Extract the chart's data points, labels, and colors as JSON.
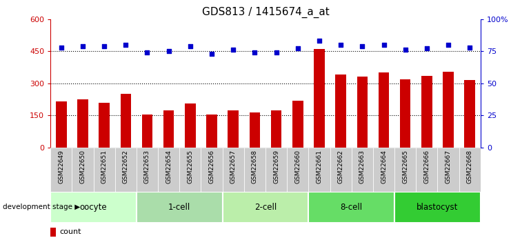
{
  "title": "GDS813 / 1415674_a_at",
  "samples": [
    "GSM22649",
    "GSM22650",
    "GSM22651",
    "GSM22652",
    "GSM22653",
    "GSM22654",
    "GSM22655",
    "GSM22656",
    "GSM22657",
    "GSM22658",
    "GSM22659",
    "GSM22660",
    "GSM22661",
    "GSM22662",
    "GSM22663",
    "GSM22664",
    "GSM22665",
    "GSM22666",
    "GSM22667",
    "GSM22668"
  ],
  "bar_values": [
    215,
    225,
    210,
    250,
    155,
    175,
    205,
    155,
    175,
    165,
    175,
    220,
    460,
    340,
    330,
    350,
    320,
    335,
    355,
    315
  ],
  "dot_values_pct": [
    78,
    79,
    79,
    80,
    74,
    75,
    79,
    73,
    76,
    74,
    74,
    77,
    83,
    80,
    79,
    80,
    76,
    77,
    80,
    78
  ],
  "stages": [
    {
      "label": "oocyte",
      "start": 0,
      "end": 4
    },
    {
      "label": "1-cell",
      "start": 4,
      "end": 8
    },
    {
      "label": "2-cell",
      "start": 8,
      "end": 12
    },
    {
      "label": "8-cell",
      "start": 12,
      "end": 16
    },
    {
      "label": "blastocyst",
      "start": 16,
      "end": 20
    }
  ],
  "stage_colors": [
    "#ccffcc",
    "#aaddaa",
    "#bbeeaa",
    "#66dd66",
    "#33cc33"
  ],
  "bar_color": "#cc0000",
  "dot_color": "#0000cc",
  "ylim_left": [
    0,
    600
  ],
  "ylim_right": [
    0,
    100
  ],
  "yticks_left": [
    0,
    150,
    300,
    450,
    600
  ],
  "yticks_right": [
    0,
    25,
    50,
    75,
    100
  ],
  "ytick_labels_right": [
    "0",
    "25",
    "50",
    "75",
    "100%"
  ],
  "grid_values": [
    150,
    300,
    450
  ],
  "title_fontsize": 11,
  "axis_color_left": "#cc0000",
  "axis_color_right": "#0000cc",
  "tick_label_bg": "#cccccc"
}
